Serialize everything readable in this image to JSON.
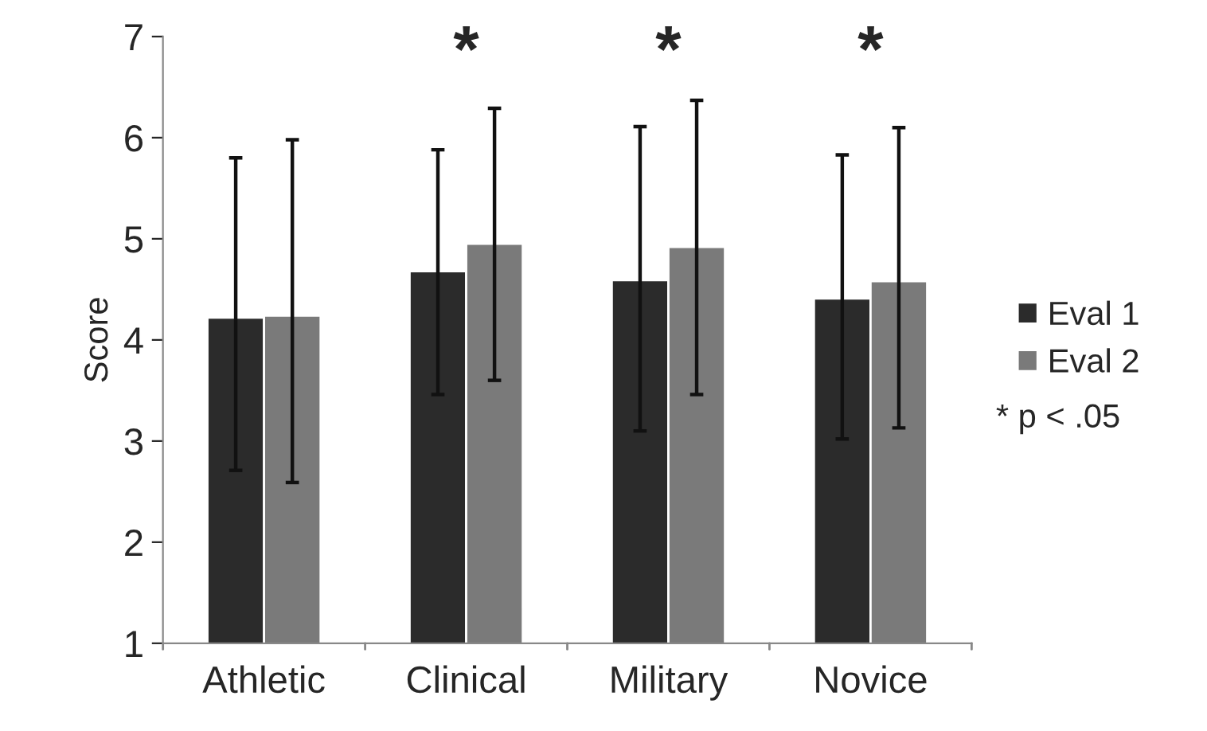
{
  "chart_data": {
    "type": "bar",
    "ylabel": "Score",
    "categories": [
      "Athletic",
      "Clinical",
      "Military",
      "Novice"
    ],
    "series": [
      {
        "name": "Eval 1",
        "color": "#2b2b2b",
        "values": [
          4.22,
          4.68,
          4.59,
          4.41
        ],
        "errors": [
          [
            2.71,
            5.8
          ],
          [
            3.46,
            5.88
          ],
          [
            3.1,
            6.11
          ],
          [
            3.02,
            5.83
          ]
        ]
      },
      {
        "name": "Eval 2",
        "color": "#7a7a7a",
        "values": [
          4.24,
          4.95,
          4.92,
          4.58
        ],
        "errors": [
          [
            2.59,
            5.98
          ],
          [
            3.6,
            6.29
          ],
          [
            3.46,
            6.37
          ],
          [
            3.13,
            6.1
          ]
        ]
      }
    ],
    "ylim": [
      1,
      7
    ],
    "yticks": [
      1,
      2,
      3,
      4,
      5,
      6,
      7
    ],
    "grid": false,
    "legend": "right",
    "annotations": [
      "*",
      "*",
      "*",
      "* p < .05"
    ]
  }
}
